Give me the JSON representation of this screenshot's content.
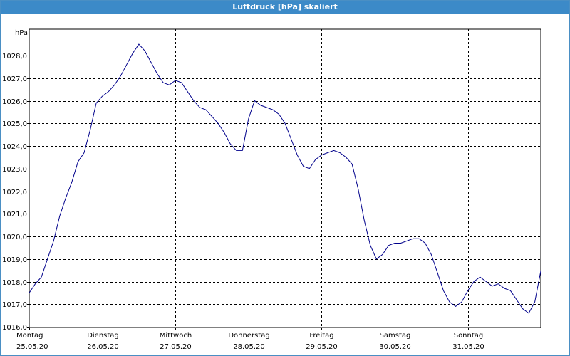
{
  "window": {
    "title": "Luftdruck [hPa] skaliert"
  },
  "chart_data": {
    "type": "line",
    "title": "Luftdruck [hPa] skaliert",
    "ylabel": "hPa",
    "ylim": [
      1016.0,
      1028.5
    ],
    "y_ticks": [
      "1016,0",
      "1017,0",
      "1018,0",
      "1019,0",
      "1020,0",
      "1021,0",
      "1022,0",
      "1023,0",
      "1024,0",
      "1025,0",
      "1026,0",
      "1027,0",
      "1028,0"
    ],
    "x_labels": [
      {
        "day": "Montag",
        "date": "25.05.20"
      },
      {
        "day": "Dienstag",
        "date": "26.05.20"
      },
      {
        "day": "Mittwoch",
        "date": "27.05.20"
      },
      {
        "day": "Donnerstag",
        "date": "28.05.20"
      },
      {
        "day": "Freitag",
        "date": "29.05.20"
      },
      {
        "day": "Samstag",
        "date": "30.05.20"
      },
      {
        "day": "Sonntag",
        "date": "31.05.20"
      }
    ],
    "grid": true,
    "line_color": "#00008b",
    "series": [
      {
        "x": [
          "25.05.20 00:00",
          "25.05.20 02:00",
          "25.05.20 04:00",
          "25.05.20 06:00",
          "25.05.20 08:00",
          "25.05.20 10:00",
          "25.05.20 12:00",
          "25.05.20 14:00",
          "25.05.20 16:00",
          "25.05.20 18:00",
          "25.05.20 20:00",
          "25.05.20 22:00",
          "26.05.20 00:00",
          "26.05.20 02:00",
          "26.05.20 04:00",
          "26.05.20 06:00",
          "26.05.20 08:00",
          "26.05.20 10:00",
          "26.05.20 12:00",
          "26.05.20 14:00",
          "26.05.20 16:00",
          "26.05.20 18:00",
          "26.05.20 20:00",
          "26.05.20 22:00",
          "27.05.20 00:00",
          "27.05.20 02:00",
          "27.05.20 04:00",
          "27.05.20 06:00",
          "27.05.20 08:00",
          "27.05.20 10:00",
          "27.05.20 12:00",
          "27.05.20 14:00",
          "27.05.20 16:00",
          "27.05.20 18:00",
          "27.05.20 20:00",
          "27.05.20 22:00",
          "28.05.20 00:00",
          "28.05.20 02:00",
          "28.05.20 04:00",
          "28.05.20 06:00",
          "28.05.20 08:00",
          "28.05.20 10:00",
          "28.05.20 12:00",
          "28.05.20 14:00",
          "28.05.20 16:00",
          "28.05.20 18:00",
          "28.05.20 20:00",
          "28.05.20 22:00",
          "29.05.20 00:00",
          "29.05.20 02:00",
          "29.05.20 04:00",
          "29.05.20 06:00",
          "29.05.20 08:00",
          "29.05.20 10:00",
          "29.05.20 12:00",
          "29.05.20 14:00",
          "29.05.20 16:00",
          "29.05.20 18:00",
          "29.05.20 20:00",
          "29.05.20 22:00",
          "30.05.20 00:00",
          "30.05.20 02:00",
          "30.05.20 04:00",
          "30.05.20 06:00",
          "30.05.20 08:00",
          "30.05.20 10:00",
          "30.05.20 12:00",
          "30.05.20 14:00",
          "30.05.20 16:00",
          "30.05.20 18:00",
          "30.05.20 20:00",
          "30.05.20 22:00",
          "31.05.20 00:00",
          "31.05.20 02:00",
          "31.05.20 04:00",
          "31.05.20 06:00",
          "31.05.20 08:00",
          "31.05.20 10:00",
          "31.05.20 12:00",
          "31.05.20 14:00",
          "31.05.20 16:00",
          "31.05.20 18:00",
          "31.05.20 20:00",
          "31.05.20 22:00",
          "01.06.20 00:00"
        ],
        "y": [
          1017.5,
          1017.9,
          1018.2,
          1019.0,
          1019.8,
          1020.9,
          1021.7,
          1022.4,
          1023.3,
          1023.7,
          1024.7,
          1025.9,
          1026.2,
          1026.4,
          1026.7,
          1027.1,
          1027.6,
          1028.1,
          1028.5,
          1028.2,
          1027.7,
          1027.2,
          1026.8,
          1026.7,
          1026.9,
          1026.8,
          1026.4,
          1026.0,
          1025.7,
          1025.6,
          1025.3,
          1025.0,
          1024.6,
          1024.1,
          1023.8,
          1023.8,
          1025.2,
          1026.0,
          1025.8,
          1025.7,
          1025.6,
          1025.4,
          1025.0,
          1024.3,
          1023.6,
          1023.1,
          1023.0,
          1023.4,
          1023.6,
          1023.7,
          1023.8,
          1023.7,
          1023.5,
          1023.2,
          1022.1,
          1020.7,
          1019.6,
          1019.0,
          1019.2,
          1019.6,
          1019.7,
          1019.7,
          1019.8,
          1019.9,
          1019.9,
          1019.7,
          1019.2,
          1018.4,
          1017.6,
          1017.1,
          1016.9,
          1017.1,
          1017.6,
          1018.0,
          1018.2,
          1018.0,
          1017.8,
          1017.9,
          1017.7,
          1017.6,
          1017.2,
          1016.8,
          1016.6,
          1017.1,
          1018.5
        ]
      }
    ]
  }
}
